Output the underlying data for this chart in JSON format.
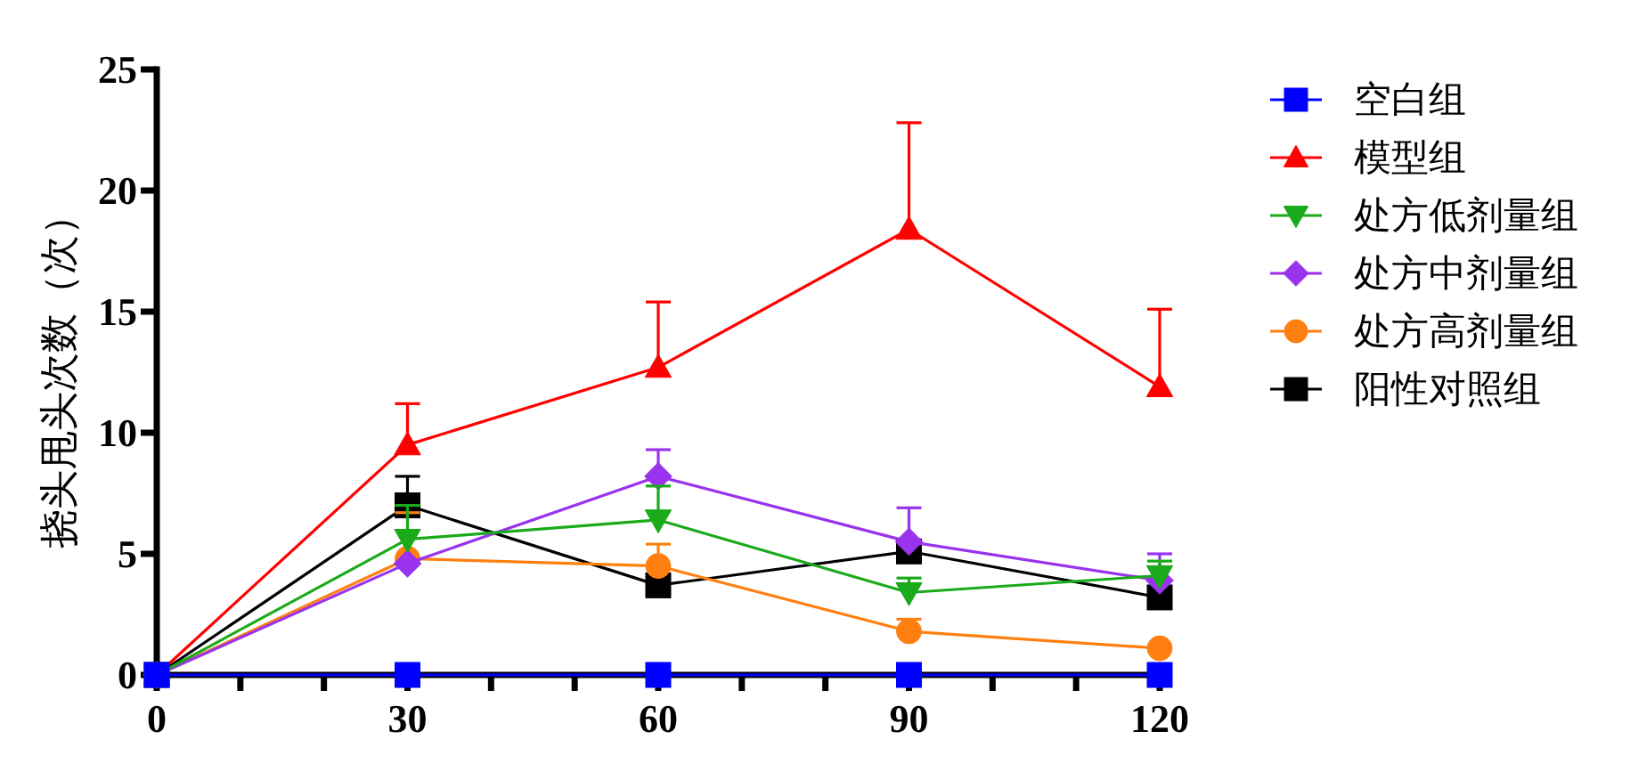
{
  "chart_data": {
    "type": "line",
    "ylabel": "挠头甩头次数（次）",
    "x": [
      0,
      30,
      60,
      90,
      120
    ],
    "xlim": [
      0,
      120
    ],
    "xticks": [
      0,
      {
        "value": 10,
        "label": null
      },
      {
        "value": 20,
        "label": null
      },
      30,
      {
        "value": 40,
        "label": null
      },
      {
        "value": 50,
        "label": null
      },
      60,
      {
        "value": 70,
        "label": null
      },
      {
        "value": 80,
        "label": null
      },
      90,
      {
        "value": 100,
        "label": null
      },
      {
        "value": 110,
        "label": null
      },
      120
    ],
    "ylim": [
      0,
      25
    ],
    "yticks": [
      0,
      5,
      10,
      15,
      20,
      25
    ],
    "legend": "right",
    "series": [
      {
        "name": "空白组",
        "color": "#0000ff",
        "marker": "square",
        "values": [
          0,
          0,
          0,
          0,
          0
        ]
      },
      {
        "name": "模型组",
        "color": "#ff0000",
        "marker": "triangle",
        "values": [
          0,
          9.5,
          12.7,
          18.4,
          11.9
        ],
        "errors": [
          null,
          [
            9.5,
            11.2
          ],
          [
            12.7,
            15.4
          ],
          [
            18.4,
            22.8
          ],
          [
            11.9,
            15.1
          ]
        ]
      },
      {
        "name": "处方低剂量组",
        "color": "#1aaa1a",
        "marker": "triangle-down",
        "values": [
          0,
          5.6,
          6.4,
          3.4,
          4.1
        ],
        "errors": [
          null,
          [
            5.6,
            7.0
          ],
          [
            6.4,
            7.8
          ],
          [
            3.4,
            4.0
          ],
          [
            4.1,
            4.7
          ]
        ]
      },
      {
        "name": "处方中剂量组",
        "color": "#9933ee",
        "marker": "diamond",
        "values": [
          0,
          4.6,
          8.2,
          5.5,
          3.9
        ],
        "errors": [
          null,
          null,
          [
            8.2,
            9.3
          ],
          [
            5.5,
            6.9
          ],
          [
            3.9,
            5.0
          ]
        ]
      },
      {
        "name": "处方高剂量组",
        "color": "#ff8010",
        "marker": "circle",
        "values": [
          0,
          4.8,
          4.5,
          1.8,
          1.1
        ],
        "errors": [
          null,
          [
            4.8,
            6.7
          ],
          [
            4.5,
            5.4
          ],
          [
            1.8,
            2.3
          ],
          null
        ]
      },
      {
        "name": "阳性对照组",
        "color": "#000000",
        "marker": "square",
        "values": [
          0,
          7.0,
          3.7,
          5.1,
          3.2
        ],
        "errors": [
          null,
          [
            7.0,
            8.2
          ],
          null,
          null,
          null
        ]
      }
    ]
  }
}
